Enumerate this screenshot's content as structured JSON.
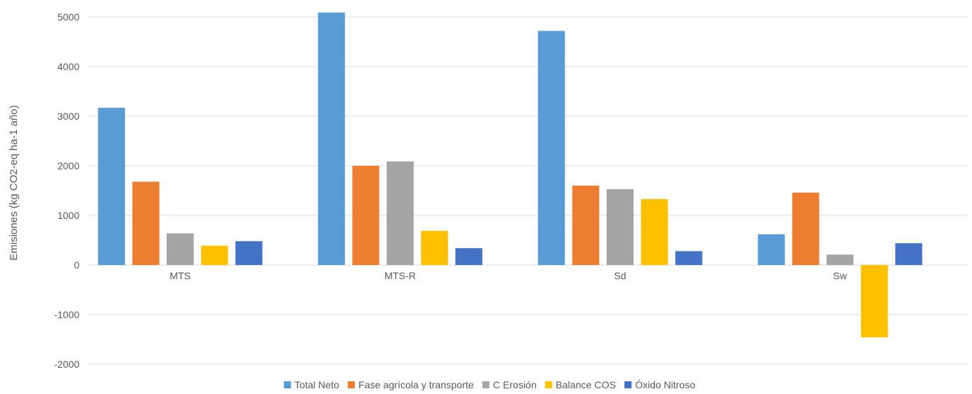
{
  "chart_data": {
    "type": "bar",
    "title": "",
    "xlabel": "",
    "ylabel": "Emisiones (kg CO2-eq ha-1 año)",
    "categories": [
      "MTS",
      "MTS-R",
      "Sd",
      "Sw"
    ],
    "ylim": [
      -2000,
      5000
    ],
    "yticks": [
      -2000,
      -1000,
      0,
      1000,
      2000,
      3000,
      4000,
      5000
    ],
    "ytick_labels": [
      "-2000",
      "-1000",
      "0",
      "1000",
      "2000",
      "3000",
      "4000",
      "5000"
    ],
    "grid": true,
    "legend_position": "bottom",
    "series": [
      {
        "name": "Total Neto",
        "color": "#5b9bd5",
        "values": [
          3170,
          5090,
          4720,
          620
        ]
      },
      {
        "name": "Fase agrícola y transporte",
        "color": "#ed7d31",
        "values": [
          1680,
          2000,
          1600,
          1460
        ]
      },
      {
        "name": "C Erosión",
        "color": "#a5a5a5",
        "values": [
          640,
          2090,
          1530,
          210
        ]
      },
      {
        "name": "Balance COS",
        "color": "#ffc000",
        "values": [
          390,
          690,
          1330,
          -1460
        ]
      },
      {
        "name": "Óxido Nitroso",
        "color": "#4472c4",
        "values": [
          480,
          340,
          280,
          440
        ]
      }
    ]
  }
}
